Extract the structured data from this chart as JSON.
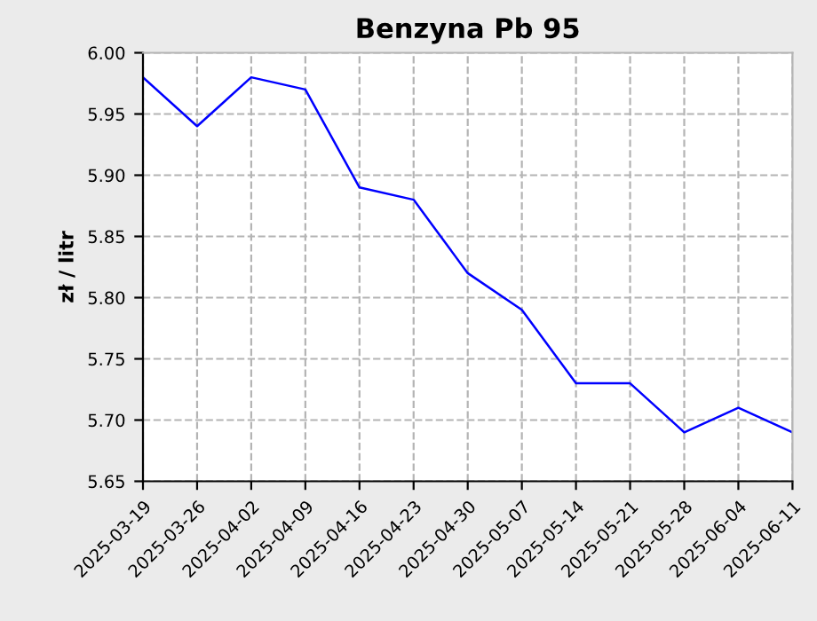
{
  "chart_data": {
    "type": "line",
    "title": "Benzyna Pb 95",
    "ylabel": "zł / litr",
    "categories": [
      "2025-03-19",
      "2025-03-26",
      "2025-04-02",
      "2025-04-09",
      "2025-04-16",
      "2025-04-23",
      "2025-04-30",
      "2025-05-07",
      "2025-05-14",
      "2025-05-21",
      "2025-05-28",
      "2025-06-04",
      "2025-06-11"
    ],
    "series": [
      {
        "color": "#0000ff",
        "values": [
          5.98,
          5.94,
          5.98,
          5.97,
          5.89,
          5.88,
          5.82,
          5.79,
          5.73,
          5.73,
          5.69,
          5.71,
          5.69
        ]
      }
    ],
    "ylim": [
      5.65,
      6.0
    ],
    "yticks": [
      {
        "value": 5.65,
        "label": "5.65"
      },
      {
        "value": 5.7,
        "label": "5.70"
      },
      {
        "value": 5.75,
        "label": "5.75"
      },
      {
        "value": 5.8,
        "label": "5.80"
      },
      {
        "value": 5.85,
        "label": "5.85"
      },
      {
        "value": 5.9,
        "label": "5.90"
      },
      {
        "value": 5.95,
        "label": "5.95"
      },
      {
        "value": 6.0,
        "label": "6.00"
      }
    ],
    "grid": true,
    "line_style": "solid",
    "marker": "none"
  }
}
